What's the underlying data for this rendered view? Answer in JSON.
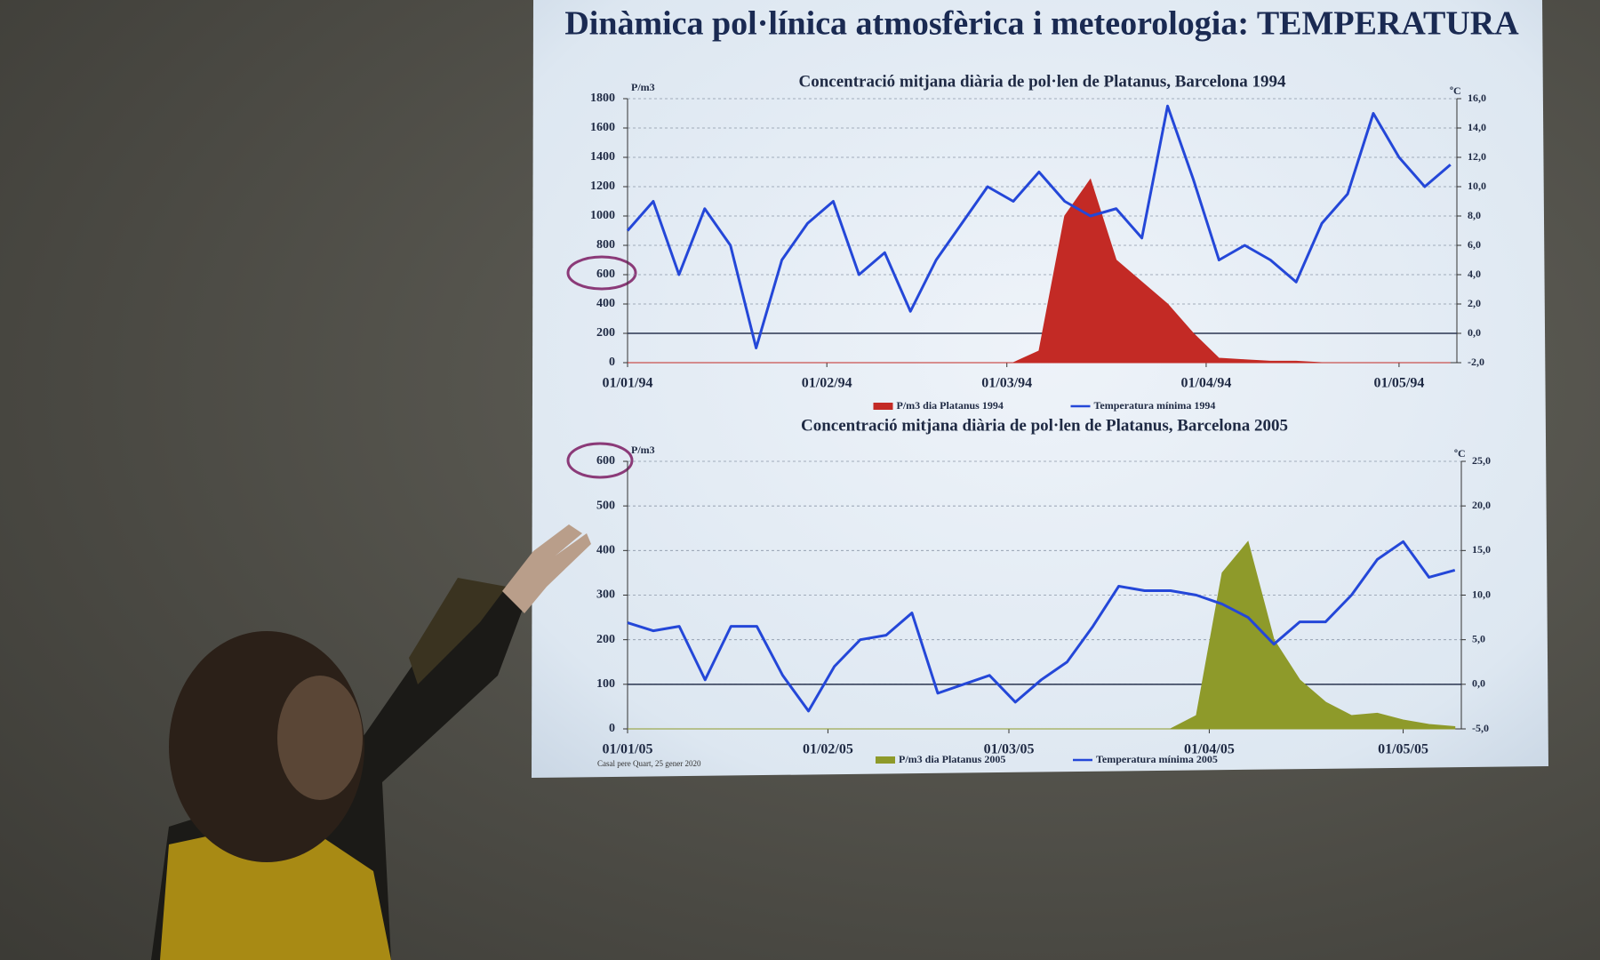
{
  "title": "Dinàmica pol·línica atmosfèrica i meteorologia: TEMPERATURA",
  "footnote": "Casal pere Quart, 25 gener 2020",
  "chart_data": [
    {
      "type": "area-line",
      "title": "Concentració mitjana diària de pol·len de Platanus, Barcelona 1994",
      "ylabel": "P/m3",
      "y2label": "ºC",
      "x": [
        "01/01/94",
        "05/01/94",
        "09/01/94",
        "13/01/94",
        "17/01/94",
        "21/01/94",
        "25/01/94",
        "29/01/94",
        "02/02/94",
        "06/02/94",
        "10/02/94",
        "14/02/94",
        "18/02/94",
        "22/02/94",
        "26/02/94",
        "02/03/94",
        "06/03/94",
        "10/03/94",
        "14/03/94",
        "18/03/94",
        "22/03/94",
        "26/03/94",
        "30/03/94",
        "03/04/94",
        "07/04/94",
        "11/04/94",
        "15/04/94",
        "19/04/94",
        "23/04/94",
        "27/04/94",
        "01/05/94",
        "05/05/94",
        "09/05/94"
      ],
      "xlim": [
        "01/01/94",
        "10/05/94"
      ],
      "xticks": [
        "01/01/94",
        "01/02/94",
        "01/03/94",
        "01/04/94",
        "01/05/94"
      ],
      "ylim": [
        0,
        1800
      ],
      "yticks": [
        0,
        200,
        400,
        600,
        800,
        1000,
        1200,
        1400,
        1600,
        1800
      ],
      "y2lim": [
        -2,
        16
      ],
      "y2ticks": [
        {
          "value": -2,
          "label": "-2,0"
        },
        {
          "value": 0,
          "label": "0,0"
        },
        {
          "value": 2,
          "label": "2,0"
        },
        {
          "value": 4,
          "label": "4,0"
        },
        {
          "value": 6,
          "label": "6,0"
        },
        {
          "value": 8,
          "label": "8,0"
        },
        {
          "value": 10,
          "label": "10,0"
        },
        {
          "value": 12,
          "label": "12,0"
        },
        {
          "value": 14,
          "label": "14,0"
        },
        {
          "value": 16,
          "label": "16,0"
        }
      ],
      "grid": true,
      "legend": "bottom",
      "series": [
        {
          "name": "P/m3 dia Platanus 1994",
          "color": "#c32a25",
          "mark": "area",
          "values": [
            0,
            0,
            0,
            0,
            0,
            0,
            0,
            0,
            0,
            0,
            0,
            0,
            0,
            0,
            0,
            0,
            80,
            1000,
            1250,
            700,
            550,
            400,
            200,
            30,
            20,
            10,
            10,
            0,
            0,
            0,
            0,
            0,
            0
          ]
        },
        {
          "name": "Temperatura mínima 1994",
          "color": "#2447d8",
          "mark": "line",
          "axis": "y2",
          "values": [
            7.0,
            9.0,
            4.0,
            8.5,
            6.0,
            -1.0,
            5.0,
            7.5,
            9.0,
            4.0,
            5.5,
            1.5,
            5.0,
            7.5,
            10.0,
            9.0,
            11.0,
            9.0,
            8.0,
            8.5,
            6.5,
            15.5,
            10.5,
            5.0,
            6.0,
            5.0,
            3.5,
            7.5,
            9.5,
            15.0,
            12.0,
            10.0,
            11.5
          ]
        }
      ]
    },
    {
      "type": "area-line",
      "title": "Concentració mitjana diària de pol·len de Platanus, Barcelona 2005",
      "ylabel": "P/m3",
      "y2label": "ºC",
      "x": [
        "01/01/05",
        "05/01/05",
        "09/01/05",
        "13/01/05",
        "17/01/05",
        "21/01/05",
        "25/01/05",
        "29/01/05",
        "02/02/05",
        "06/02/05",
        "10/02/05",
        "14/02/05",
        "18/02/05",
        "22/02/05",
        "26/02/05",
        "02/03/05",
        "06/03/05",
        "10/03/05",
        "14/03/05",
        "18/03/05",
        "22/03/05",
        "26/03/05",
        "30/03/05",
        "03/04/05",
        "07/04/05",
        "11/04/05",
        "15/04/05",
        "19/04/05",
        "23/04/05",
        "27/04/05",
        "01/05/05",
        "05/05/05",
        "09/05/05"
      ],
      "xlim": [
        "01/01/05",
        "10/05/05"
      ],
      "xticks": [
        "01/01/05",
        "01/02/05",
        "01/03/05",
        "01/04/05",
        "01/05/05"
      ],
      "ylim": [
        0,
        600
      ],
      "yticks": [
        0,
        100,
        200,
        300,
        400,
        500,
        600
      ],
      "y2lim": [
        -5,
        25
      ],
      "y2ticks": [
        {
          "value": -5,
          "label": "-5,0"
        },
        {
          "value": 0,
          "label": "0,0"
        },
        {
          "value": 5,
          "label": "5,0"
        },
        {
          "value": 10,
          "label": "10,0"
        },
        {
          "value": 15,
          "label": "15,0"
        },
        {
          "value": 20,
          "label": "20,0"
        },
        {
          "value": 25,
          "label": "25,0"
        }
      ],
      "grid": true,
      "legend": "bottom",
      "series": [
        {
          "name": "P/m3 dia Platanus 2005",
          "color": "#8e9a2a",
          "mark": "area",
          "values": [
            0,
            0,
            0,
            0,
            0,
            0,
            0,
            0,
            0,
            0,
            0,
            0,
            0,
            0,
            0,
            0,
            0,
            0,
            0,
            0,
            0,
            0,
            30,
            350,
            420,
            200,
            110,
            60,
            30,
            35,
            20,
            10,
            5
          ]
        },
        {
          "name": "Temperatura mínima 2005",
          "color": "#2447d8",
          "mark": "line",
          "axis": "y2",
          "values": [
            6.9,
            6.0,
            6.5,
            0.5,
            6.5,
            6.5,
            1.0,
            -3.0,
            2.0,
            5.0,
            5.5,
            8.0,
            -1.0,
            0.0,
            1.0,
            -2.0,
            0.5,
            2.5,
            6.5,
            11.0,
            10.5,
            10.5,
            10.0,
            9.0,
            7.5,
            4.5,
            7.0,
            7.0,
            10.0,
            14.0,
            16.0,
            12.0,
            12.8
          ]
        }
      ]
    }
  ]
}
